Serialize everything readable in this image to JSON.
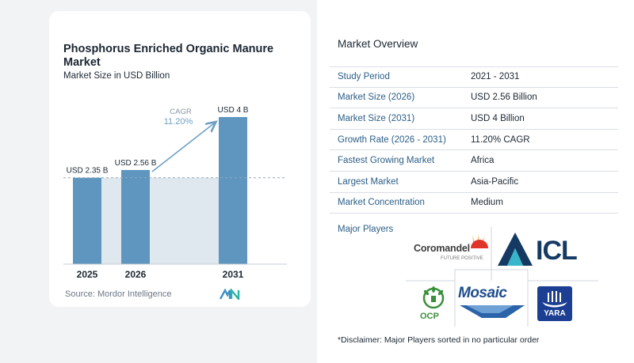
{
  "chart": {
    "title": "Phosphorus Enriched Organic Manure Market",
    "subtitle": "Market Size in USD Billion",
    "source": "Source: Mordor Intelligence",
    "cagr_label": "CAGR",
    "cagr_value": "11.20%"
  },
  "chart_data": {
    "type": "bar",
    "categories": [
      "2025",
      "2026",
      "2031"
    ],
    "values": [
      2.35,
      2.56,
      4
    ],
    "data_labels": [
      "USD 2.35 B",
      "USD 2.56 B",
      "USD 4 B"
    ],
    "title": "Phosphorus Enriched Organic Manure Market",
    "subtitle": "Market Size in USD Billion",
    "xlabel": "",
    "ylabel": "",
    "ylim": [
      0,
      4
    ],
    "grid": false,
    "reference_line_value": 2.35,
    "annotation": "CAGR 11.20%",
    "colors": {
      "bar": "#5e96c0",
      "bar_top": "#7aaacd",
      "shade": "#dfe7ef",
      "arrow": "#6e9fc4",
      "text_accent": "#6e9fc4"
    }
  },
  "overview": {
    "title": "Market Overview",
    "rows": [
      {
        "label": "Study Period",
        "value": "2021 - 2031"
      },
      {
        "label": "Market Size (2026)",
        "value": "USD 2.56 Billion"
      },
      {
        "label": "Market Size (2031)",
        "value": "USD 4 Billion"
      },
      {
        "label": "Growth Rate (2026 - 2031)",
        "value": "11.20% CAGR"
      },
      {
        "label": "Fastest Growing Market",
        "value": "Africa"
      },
      {
        "label": "Largest Market",
        "value": "Asia-Pacific"
      },
      {
        "label": "Market Concentration",
        "value": "Medium"
      }
    ]
  },
  "players": {
    "label": "Major Players",
    "logos": {
      "coromandel": {
        "name": "Coromandel",
        "tagline": "FUTURE POSITIVE"
      },
      "icl": {
        "name": "ICL"
      },
      "ocp": {
        "name": "OCP"
      },
      "mosaic": {
        "name": "Mosaic"
      },
      "yara": {
        "name": "YARA"
      }
    },
    "disclaimer": "*Disclaimer: Major Players sorted in no particular order"
  }
}
